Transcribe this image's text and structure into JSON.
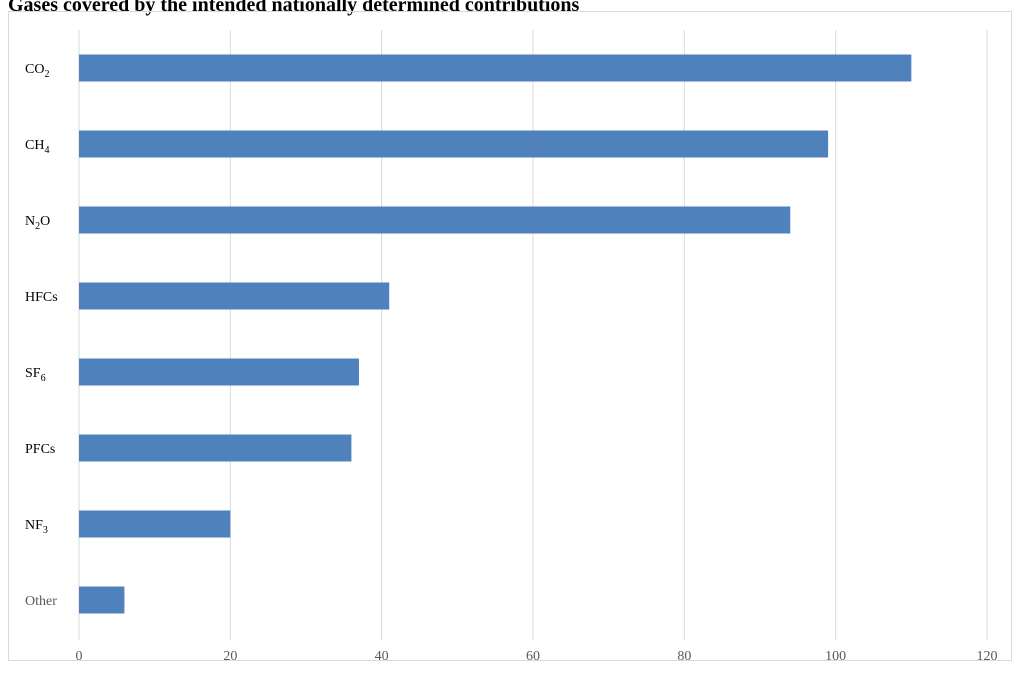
{
  "chart_data": {
    "type": "bar",
    "orientation": "horizontal",
    "title": "Gases covered by the intended nationally determined contributions",
    "xlabel": "",
    "ylabel": "",
    "categories": [
      {
        "base": "CO",
        "sub": "2"
      },
      {
        "base": "CH",
        "sub": "4"
      },
      {
        "base": "N",
        "sub": "2",
        "tail": "O"
      },
      {
        "base": "HFCs",
        "sub": ""
      },
      {
        "base": "SF",
        "sub": "6"
      },
      {
        "base": "PFCs",
        "sub": ""
      },
      {
        "base": "NF",
        "sub": "3"
      },
      {
        "base": "Other",
        "sub": ""
      }
    ],
    "values": [
      110,
      99,
      94,
      41,
      37,
      36,
      20,
      6
    ],
    "xlim": [
      0,
      120
    ],
    "xticks": [
      "0",
      "20",
      "40",
      "60",
      "80",
      "100",
      "120"
    ],
    "grid": true,
    "legend": "none",
    "bar_color": "#4f81bd"
  }
}
